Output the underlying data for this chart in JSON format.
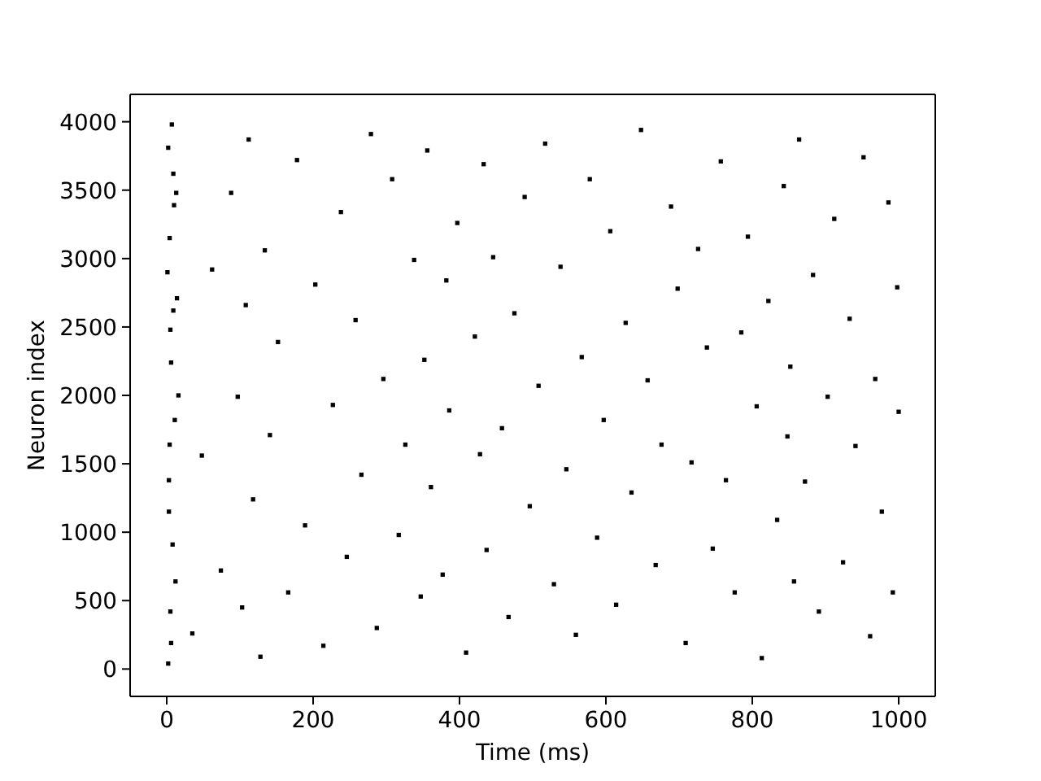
{
  "chart_data": {
    "type": "scatter",
    "xlabel": "Time (ms)",
    "ylabel": "Neuron index",
    "color": "#000000",
    "marker": "square",
    "x": [
      2,
      5,
      8,
      3,
      11,
      6,
      14,
      4,
      9,
      7,
      12,
      3,
      16,
      5,
      10,
      2,
      1,
      6,
      13,
      4,
      9,
      35,
      48,
      62,
      74,
      88,
      97,
      103,
      108,
      112,
      118,
      128,
      134,
      141,
      152,
      166,
      178,
      189,
      203,
      214,
      227,
      238,
      246,
      258,
      266,
      279,
      287,
      296,
      308,
      317,
      326,
      338,
      347,
      352,
      356,
      361,
      377,
      382,
      386,
      397,
      409,
      421,
      428,
      433,
      437,
      446,
      458,
      467,
      475,
      489,
      496,
      508,
      517,
      529,
      538,
      546,
      559,
      567,
      578,
      588,
      597,
      606,
      614,
      627,
      635,
      648,
      657,
      668,
      676,
      689,
      698,
      709,
      717,
      726,
      738,
      746,
      757,
      764,
      776,
      785,
      794,
      806,
      813,
      822,
      834,
      843,
      848,
      852,
      857,
      864,
      872,
      883,
      891,
      903,
      912,
      924,
      933,
      941,
      952,
      961,
      968,
      977,
      986,
      992,
      998,
      1000
    ],
    "values": [
      40,
      420,
      910,
      1380,
      1820,
      2240,
      2710,
      3150,
      3620,
      3980,
      640,
      1150,
      2000,
      2480,
      3390,
      3810,
      2900,
      190,
      3480,
      1640,
      2620,
      260,
      1560,
      2920,
      720,
      3480,
      1990,
      450,
      2660,
      3870,
      1240,
      90,
      3060,
      1710,
      2390,
      560,
      3720,
      1050,
      2810,
      170,
      1930,
      3340,
      820,
      2550,
      1420,
      3910,
      300,
      2120,
      3580,
      980,
      1640,
      2990,
      530,
      2260,
      3790,
      1330,
      690,
      2840,
      1890,
      3260,
      120,
      2430,
      1570,
      3690,
      870,
      3010,
      1760,
      380,
      2600,
      3450,
      1190,
      2070,
      3840,
      620,
      2940,
      1460,
      250,
      2280,
      3580,
      960,
      1820,
      3200,
      470,
      2530,
      1290,
      3940,
      2110,
      760,
      1640,
      3380,
      2780,
      190,
      1510,
      3070,
      2350,
      880,
      3710,
      1380,
      560,
      2460,
      3160,
      1920,
      80,
      2690,
      1090,
      3530,
      1700,
      2210,
      640,
      3870,
      1370,
      2880,
      420,
      1990,
      3290,
      780,
      2560,
      1630,
      3740,
      240,
      2120,
      1150,
      3410,
      560,
      2790,
      1880
    ],
    "xlim": [
      -50,
      1050
    ],
    "xticks": [
      0,
      200,
      400,
      600,
      800,
      1000
    ],
    "ylim": [
      -200,
      4200
    ],
    "yticks": [
      0,
      500,
      1000,
      1500,
      2000,
      2500,
      3000,
      3500,
      4000
    ]
  }
}
